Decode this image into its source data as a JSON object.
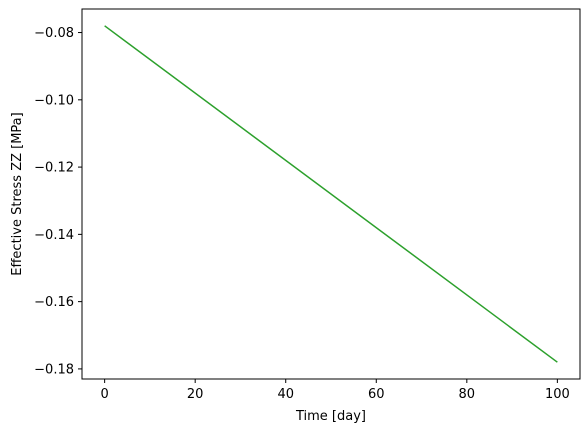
{
  "chart_data": {
    "type": "line",
    "xlabel": "Time [day]",
    "ylabel": "Effective Stress ZZ [MPa]",
    "xlim": [
      -5,
      105
    ],
    "ylim": [
      -0.183,
      -0.073
    ],
    "xticks": [
      0,
      20,
      40,
      60,
      80,
      100
    ],
    "xtick_labels": [
      "0",
      "20",
      "40",
      "60",
      "80",
      "100"
    ],
    "yticks": [
      -0.08,
      -0.1,
      -0.12,
      -0.14,
      -0.16,
      -0.18
    ],
    "ytick_labels": [
      "−0.08",
      "−0.10",
      "−0.12",
      "−0.14",
      "−0.16",
      "−0.18"
    ],
    "grid": false,
    "series": [
      {
        "color": "#2ca02c",
        "x": [
          0,
          100
        ],
        "y": [
          -0.078,
          -0.178
        ]
      }
    ]
  }
}
